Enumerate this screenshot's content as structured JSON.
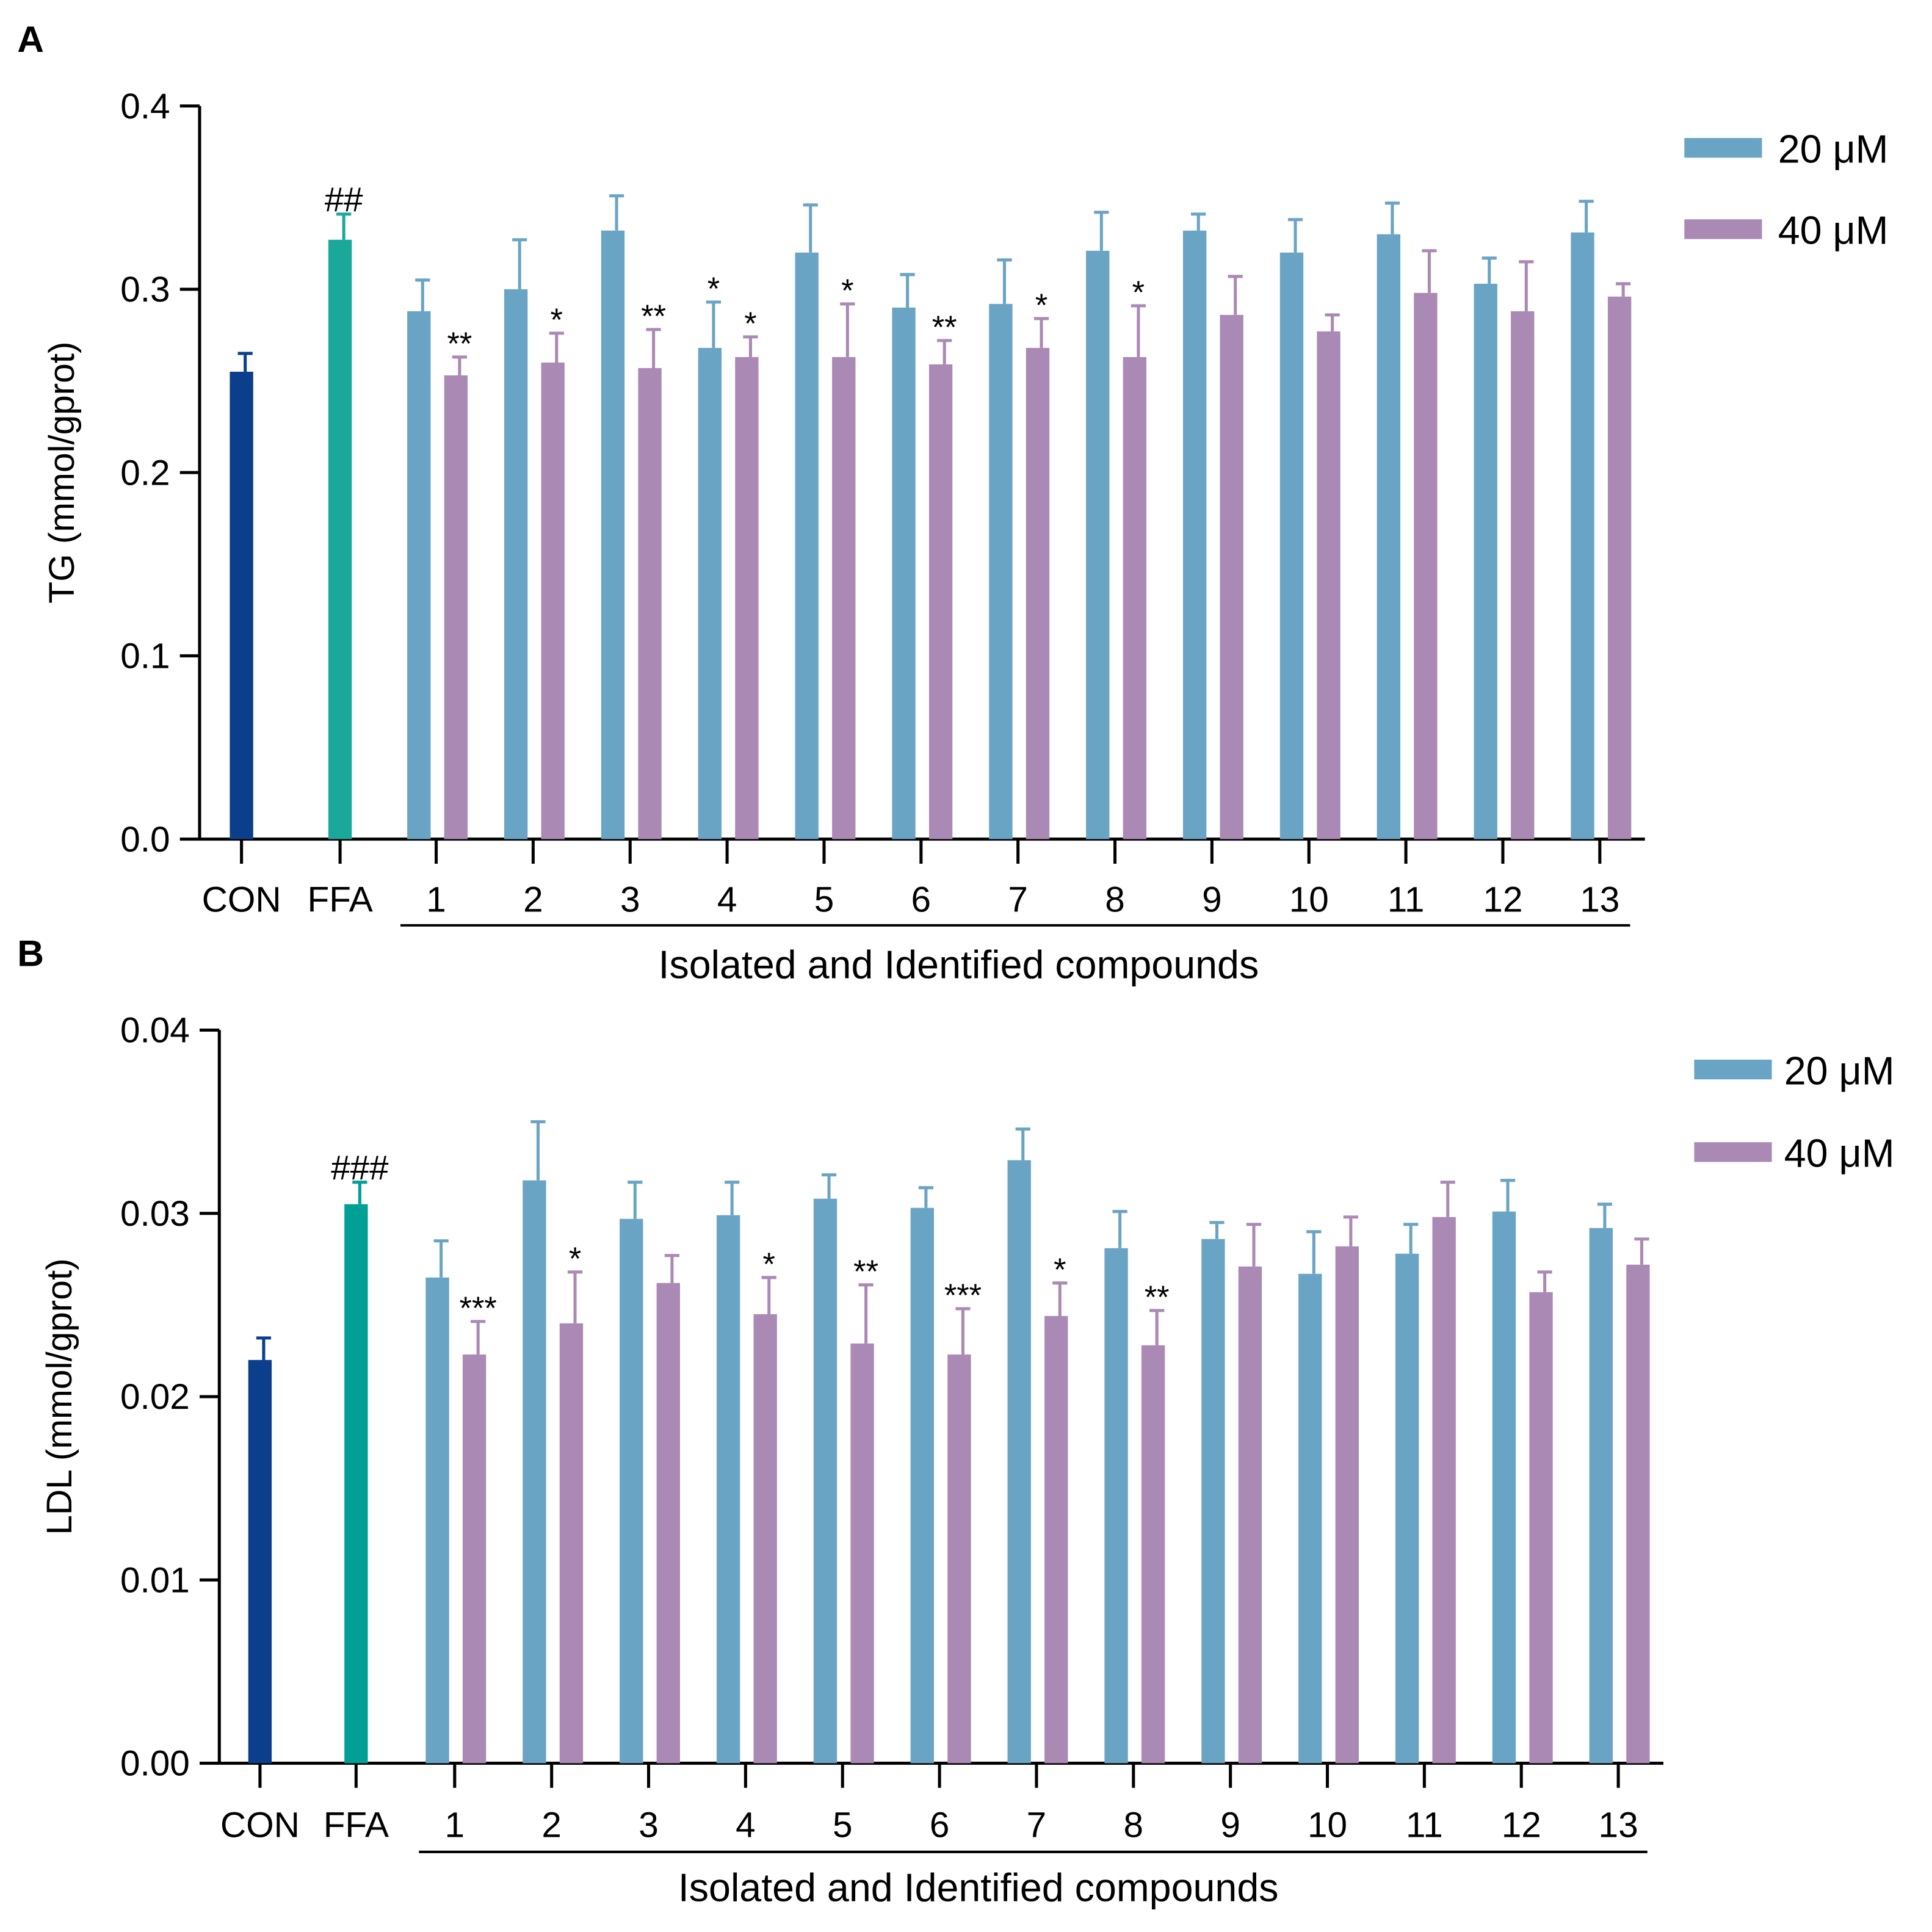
{
  "colors": {
    "con": "#0b3f8c",
    "ffa_a": "#1aa89b",
    "ffa_b": "#00a095",
    "s20": "#6aa4c4",
    "s40": "#ab89b5"
  },
  "chart_data": [
    {
      "panel_label": "A",
      "type": "bar",
      "ylabel": "TG (mmol/gprot)",
      "xlabel": "Isolated and Identified compounds",
      "ylim": [
        0,
        0.4
      ],
      "yticks": [
        "0.0",
        "0.1",
        "0.2",
        "0.3",
        "0.4"
      ],
      "legend": [
        "20 μM",
        "40 μM"
      ],
      "legend_position": "top-right",
      "controls": [
        {
          "label": "CON",
          "value": 0.255,
          "error": 0.01,
          "mark": ""
        },
        {
          "label": "FFA",
          "value": 0.327,
          "error": 0.014,
          "mark": "##"
        }
      ],
      "categories": [
        "1",
        "2",
        "3",
        "4",
        "5",
        "6",
        "7",
        "8",
        "9",
        "10",
        "11",
        "12",
        "13"
      ],
      "series": [
        {
          "name": "20 μM",
          "values": [
            0.288,
            0.3,
            0.332,
            0.268,
            0.32,
            0.29,
            0.292,
            0.321,
            0.332,
            0.32,
            0.33,
            0.303,
            0.331
          ],
          "errors": [
            0.017,
            0.027,
            0.019,
            0.025,
            0.026,
            0.018,
            0.024,
            0.021,
            0.009,
            0.018,
            0.017,
            0.014,
            0.017
          ],
          "marks": [
            "",
            "",
            "",
            "*",
            "",
            "",
            "",
            "",
            "",
            "",
            "",
            "",
            ""
          ]
        },
        {
          "name": "40 μM",
          "values": [
            0.253,
            0.26,
            0.257,
            0.263,
            0.263,
            0.259,
            0.268,
            0.263,
            0.286,
            0.277,
            0.298,
            0.288,
            0.296
          ],
          "errors": [
            0.01,
            0.016,
            0.021,
            0.011,
            0.029,
            0.013,
            0.016,
            0.028,
            0.021,
            0.009,
            0.023,
            0.027,
            0.007
          ],
          "marks": [
            "**",
            "*",
            "**",
            "*",
            "*",
            "**",
            "*",
            "*",
            "",
            "",
            "",
            "",
            ""
          ]
        }
      ]
    },
    {
      "panel_label": "B",
      "type": "bar",
      "ylabel": "LDL (mmol/gprot)",
      "xlabel": "Isolated and Identified compounds",
      "ylim": [
        0,
        0.04
      ],
      "yticks": [
        "0.00",
        "0.01",
        "0.02",
        "0.03",
        "0.04"
      ],
      "legend": [
        "20 μM",
        "40 μM"
      ],
      "legend_position": "top-right",
      "controls": [
        {
          "label": "CON",
          "value": 0.022,
          "error": 0.0012,
          "mark": ""
        },
        {
          "label": "FFA",
          "value": 0.0305,
          "error": 0.0012,
          "mark": "###"
        }
      ],
      "categories": [
        "1",
        "2",
        "3",
        "4",
        "5",
        "6",
        "7",
        "8",
        "9",
        "10",
        "11",
        "12",
        "13"
      ],
      "series": [
        {
          "name": "20 μM",
          "values": [
            0.0265,
            0.0318,
            0.0297,
            0.0299,
            0.0308,
            0.0303,
            0.0329,
            0.0281,
            0.0286,
            0.0267,
            0.0278,
            0.0301,
            0.0292
          ],
          "errors": [
            0.002,
            0.0032,
            0.002,
            0.0018,
            0.0013,
            0.0011,
            0.0017,
            0.002,
            0.0009,
            0.0023,
            0.0016,
            0.0017,
            0.0013
          ],
          "marks": [
            "",
            "",
            "",
            "",
            "",
            "",
            "",
            "",
            "",
            "",
            "",
            "",
            ""
          ]
        },
        {
          "name": "40 μM",
          "values": [
            0.0223,
            0.024,
            0.0262,
            0.0245,
            0.0229,
            0.0223,
            0.0244,
            0.0228,
            0.0271,
            0.0282,
            0.0298,
            0.0257,
            0.0272
          ],
          "errors": [
            0.0018,
            0.0028,
            0.0015,
            0.002,
            0.0032,
            0.0025,
            0.0018,
            0.0019,
            0.0023,
            0.0016,
            0.0019,
            0.0011,
            0.0014
          ],
          "marks": [
            "***",
            "*",
            "",
            "*",
            "**",
            "***",
            "*",
            "**",
            "",
            "",
            "",
            "",
            ""
          ]
        }
      ]
    }
  ]
}
